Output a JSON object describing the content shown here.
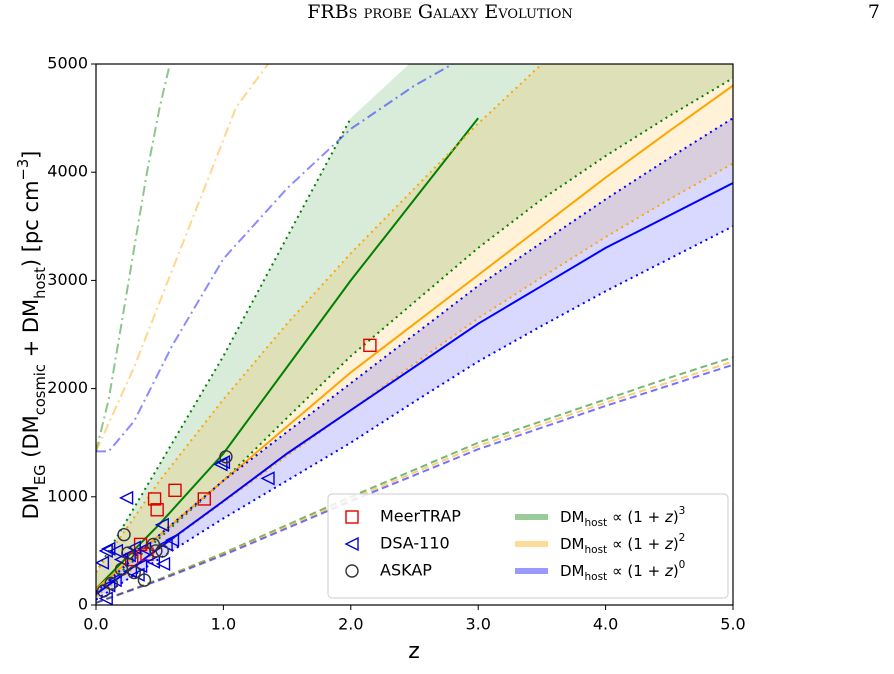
{
  "header": {
    "title": "FRBs probe Galaxy Evolution",
    "page": "7"
  },
  "chart_data": {
    "type": "line",
    "xlabel": "z",
    "ylabel": [
      "DM",
      "EG",
      " (DM",
      "cosmic",
      " + DM",
      "host",
      ") [pc cm",
      "−3",
      "]"
    ],
    "xlim": [
      0,
      5
    ],
    "ylim": [
      0,
      5000
    ],
    "xticks": [
      {
        "value": 0,
        "label": "0.0"
      },
      {
        "value": 1,
        "label": "1.0"
      },
      {
        "value": 2,
        "label": "2.0"
      },
      {
        "value": 3,
        "label": "3.0"
      },
      {
        "value": 4,
        "label": "4.0"
      },
      {
        "value": 5,
        "label": "5.0"
      }
    ],
    "yticks": [
      0,
      1000,
      2000,
      3000,
      4000,
      5000
    ],
    "x": [
      0,
      0.5,
      1,
      1.5,
      2,
      2.5,
      3,
      3.5,
      4,
      4.5,
      5
    ],
    "models": [
      {
        "name": [
          "DM",
          "host",
          " ∝ (1 + ",
          "z",
          ")",
          "3"
        ],
        "color": "#008000",
        "values": [
          150,
          750,
          1400,
          2200,
          3000,
          3750,
          4500,
          null,
          null,
          null,
          null
        ],
        "upper": [
          300,
          1300,
          2300,
          3400,
          4500,
          null,
          null,
          null,
          null,
          null,
          null
        ],
        "lower": [
          100,
          620,
          1150,
          1730,
          2300,
          2800,
          3300,
          3750,
          4150,
          4520,
          4870
        ],
        "min": [
          20,
          240,
          480,
          740,
          1000,
          1250,
          1500,
          1700,
          1900,
          2100,
          2290
        ],
        "max_x": [
          0,
          0.1,
          0.2,
          0.3,
          0.4,
          0.5,
          0.58
        ],
        "max": [
          1420,
          1900,
          2600,
          3300,
          4000,
          4600,
          5000
        ]
      },
      {
        "name": [
          "DM",
          "host",
          " ∝ (1 + ",
          "z",
          ")",
          "2"
        ],
        "color": "#ffa500",
        "values": [
          150,
          650,
          1150,
          1650,
          2150,
          2600,
          3050,
          3500,
          3950,
          4380,
          4800
        ],
        "upper": [
          300,
          1150,
          1900,
          2600,
          3250,
          3850,
          4450,
          5000,
          null,
          null,
          null
        ],
        "lower": [
          80,
          520,
          950,
          1380,
          1800,
          2230,
          2650,
          3030,
          3400,
          3750,
          4080
        ],
        "min": [
          20,
          235,
          470,
          725,
          980,
          1225,
          1470,
          1670,
          1870,
          2060,
          2250
        ],
        "max_x": [
          0,
          0.3,
          0.6,
          0.9,
          1.1,
          1.35
        ],
        "max": [
          1420,
          2200,
          3100,
          4000,
          4600,
          5000
        ]
      },
      {
        "name": [
          "DM",
          "host",
          " ∝ (1 + ",
          "z",
          ")",
          "0"
        ],
        "color": "#0000ff",
        "values": [
          100,
          530,
          960,
          1400,
          1800,
          2200,
          2600,
          2950,
          3300,
          3600,
          3900
        ],
        "upper": [
          120,
          650,
          1150,
          1600,
          2050,
          2500,
          2950,
          3350,
          3750,
          4130,
          4500
        ],
        "lower": [
          50,
          430,
          800,
          1150,
          1500,
          1880,
          2250,
          2580,
          2900,
          3200,
          3500
        ],
        "min": [
          20,
          230,
          460,
          710,
          960,
          1200,
          1440,
          1640,
          1840,
          2030,
          2220
        ],
        "max_x": [
          0,
          0.1,
          0.3,
          0.6,
          1,
          1.5,
          2,
          2.5,
          2.8
        ],
        "max": [
          1420,
          1420,
          1700,
          2400,
          3200,
          3850,
          4400,
          4800,
          5000
        ]
      }
    ],
    "samples": [
      {
        "name": "MeerTRAP",
        "color": "#e00000",
        "marker": "square",
        "x": [
          0.46,
          0.48,
          0.62,
          0.85,
          2.15,
          0.35,
          0.4,
          0.28
        ],
        "y": [
          980,
          880,
          1060,
          980,
          2400,
          560,
          470,
          420
        ]
      },
      {
        "name": "DSA-110",
        "color": "#0000e0",
        "marker": "triangle-left",
        "x": [
          0.24,
          0.08,
          0.1,
          0.05,
          0.16,
          0.3,
          0.26,
          0.2,
          0.27,
          0.33,
          0.45,
          0.53,
          0.55,
          0.52,
          0.98,
          1.0,
          1.35,
          0.08,
          0.1,
          0.15,
          0.35,
          0.38,
          0.6
        ],
        "y": [
          990,
          500,
          520,
          390,
          500,
          530,
          460,
          420,
          310,
          280,
          400,
          380,
          560,
          740,
          1300,
          1320,
          1170,
          60,
          180,
          230,
          360,
          520,
          600
        ]
      },
      {
        "name": "ASKAP",
        "color": "#333333",
        "marker": "circle",
        "x": [
          0.22,
          0.45,
          0.47,
          0.52,
          0.38,
          0.3,
          0.12,
          0.06,
          1.02,
          0.25,
          0.2
        ],
        "y": [
          650,
          560,
          500,
          500,
          230,
          300,
          200,
          130,
          1370,
          480,
          330
        ]
      }
    ]
  }
}
